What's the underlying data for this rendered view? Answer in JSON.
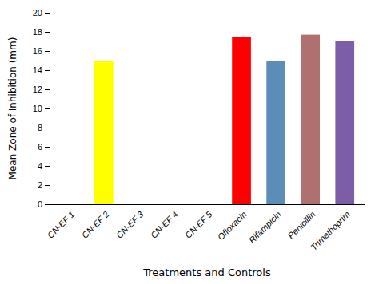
{
  "chart_data": {
    "type": "bar",
    "categories": [
      "CN-EF 1",
      "CN-EF 2",
      "CN-EF 3",
      "CN-EF 4",
      "CN-EF 5",
      "Ofloxacin",
      "Rifampicin",
      "Penicillin",
      "Trimethoprim"
    ],
    "values": [
      0,
      15,
      0,
      0,
      0,
      17.5,
      15,
      17.7,
      17.0
    ],
    "colors": [
      "#cccccc",
      "#ffff00",
      "#cccccc",
      "#cccccc",
      "#cccccc",
      "#ff0000",
      "#5b8db8",
      "#b07070",
      "#7b5ea7"
    ],
    "ylabel": "Mean Zone of Inhibition (mm)",
    "xlabel": "Treatments and Controls",
    "ylim": [
      0,
      20
    ],
    "yticks": [
      0,
      2,
      4,
      6,
      8,
      10,
      12,
      14,
      16,
      18,
      20
    ]
  }
}
